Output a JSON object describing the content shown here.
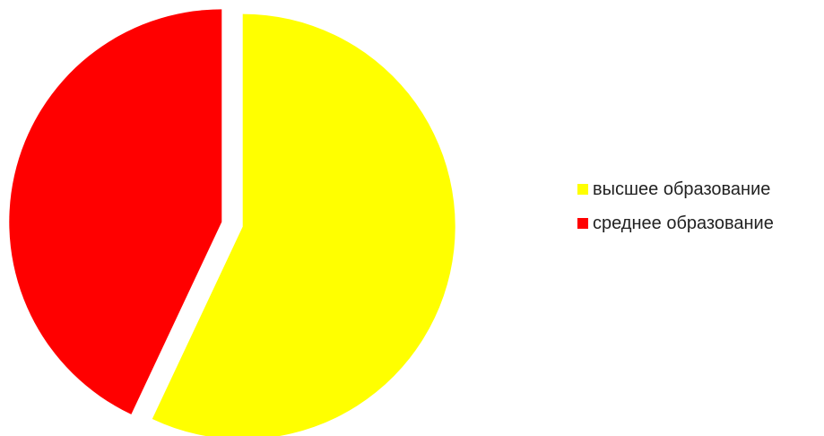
{
  "chart_data": {
    "type": "pie",
    "title": "",
    "legend_position": "right",
    "start_angle_deg": 0,
    "direction": "clockwise",
    "slices": [
      {
        "label": "высшее образование",
        "value": 57,
        "color": "#FFFF00",
        "exploded": true
      },
      {
        "label": "среднее образование",
        "value": 43,
        "color": "#FF0000",
        "exploded": true
      }
    ]
  }
}
